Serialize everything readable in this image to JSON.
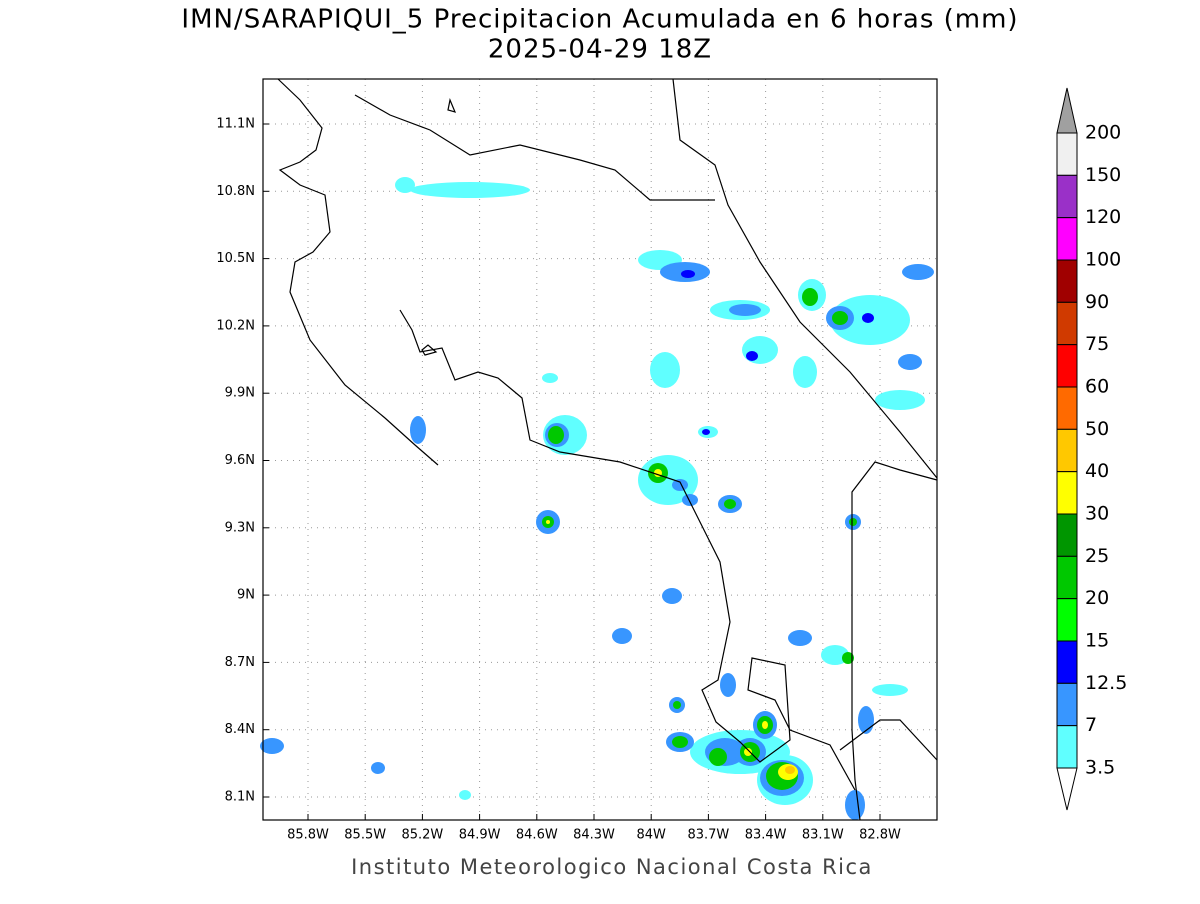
{
  "map": {
    "title": "IMN/SARAPIQUI_5 Precipitacion Acumulada en 6 horas (mm)",
    "subtitle": "2025-04-29 18Z",
    "footer": "Instituto Meteorologico Nacional Costa Rica",
    "lon_labels": [
      "85.8W",
      "85.5W",
      "85.2W",
      "84.9W",
      "84.6W",
      "84.3W",
      "84W",
      "83.7W",
      "83.4W",
      "83.1W",
      "82.8W"
    ],
    "lat_labels": [
      "11.1N",
      "10.8N",
      "10.5N",
      "10.2N",
      "9.9N",
      "9.6N",
      "9.3N",
      "9N",
      "8.7N",
      "8.4N",
      "8.1N"
    ],
    "colorbar": {
      "levels": [
        200,
        150,
        120,
        100,
        90,
        75,
        60,
        50,
        40,
        30,
        25,
        20,
        15,
        12.5,
        7,
        3.5
      ],
      "colors": [
        "#f0f0f0",
        "#9a30c8",
        "#ff00ff",
        "#a00000",
        "#d03a00",
        "#ff0000",
        "#ff6a00",
        "#ffc800",
        "#ffff00",
        "#009600",
        "#00c800",
        "#00ff00",
        "#0000ff",
        "#3896ff",
        "#60ffff"
      ]
    }
  }
}
